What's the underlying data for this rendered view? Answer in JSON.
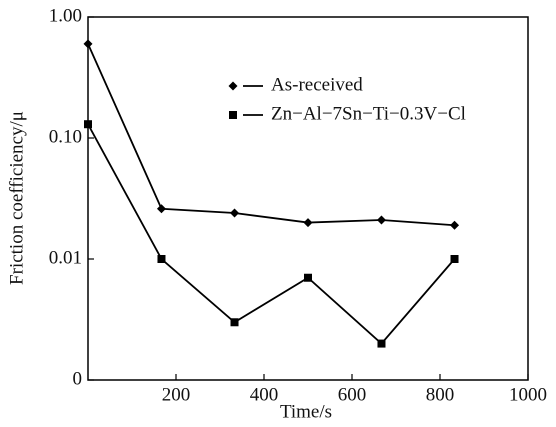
{
  "chart_data": {
    "type": "line",
    "xlabel": "Time/s",
    "ylabel": "Friction coefficiency/μ",
    "log_y": true,
    "xlim": [
      0,
      1000
    ],
    "xticks": [
      200,
      400,
      600,
      800,
      1000
    ],
    "ylim": [
      0.001,
      1
    ],
    "yticks": [
      {
        "value": 0.001,
        "label": "0"
      },
      0.01,
      {
        "value": 0.1,
        "label": "0.10"
      },
      {
        "value": 1,
        "label": "1.00"
      }
    ],
    "legend": "upper center",
    "series": [
      {
        "name": "As-received",
        "color": "#000000",
        "marker": "diamond",
        "x": [
          0,
          167,
          333,
          500,
          667,
          833
        ],
        "values": [
          0.6,
          0.026,
          0.024,
          0.02,
          0.021,
          0.019
        ]
      },
      {
        "name": "Zn−Al−7Sn−Ti−0.3V−Cl",
        "color": "#000000",
        "marker": "square",
        "x": [
          0,
          167,
          333,
          500,
          667,
          833
        ],
        "values": [
          0.13,
          0.01,
          0.003,
          0.007,
          0.002,
          0.01
        ]
      }
    ]
  }
}
